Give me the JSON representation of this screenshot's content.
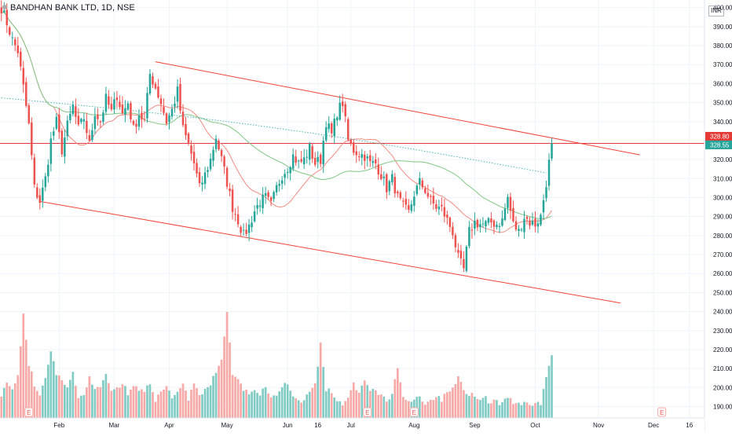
{
  "header": {
    "title": "BANDHAN BANK LTD, 1D, NSE",
    "currency": "INR"
  },
  "colors": {
    "up": "#26a69a",
    "down": "#ef5350",
    "up_volume": "#80cbc4",
    "down_volume": "#f7a9a7",
    "ma_fast": "#f28b82",
    "ma_mid": "#81c784",
    "ma_slow": "#4db6ac",
    "channel": "#f44336",
    "price_line": "#e53935"
  },
  "chart_data": {
    "type": "candlestick",
    "symbol": "BANDHAN BANK LTD",
    "interval": "1D",
    "exchange": "NSE",
    "y_axis": {
      "range": [
        184,
        404
      ],
      "ticks": [
        400,
        390,
        380,
        370,
        360,
        350,
        340,
        330,
        320,
        310,
        300,
        290,
        280,
        270,
        260,
        250,
        240,
        230,
        220,
        210,
        200,
        190
      ],
      "unit": "INR"
    },
    "x_axis": {
      "ticks": [
        {
          "label": "Feb",
          "bar": 21
        },
        {
          "label": "Mar",
          "bar": 41
        },
        {
          "label": "Apr",
          "bar": 61
        },
        {
          "label": "May",
          "bar": 82
        },
        {
          "label": "Jun",
          "bar": 104
        },
        {
          "label": "16",
          "bar": 115
        },
        {
          "label": "Jul",
          "bar": 127
        },
        {
          "label": "Aug",
          "bar": 150
        },
        {
          "label": "Sep",
          "bar": 172
        },
        {
          "label": "Oct",
          "bar": 194
        },
        {
          "label": "Nov",
          "bar": 217
        },
        {
          "label": "Dec",
          "bar": 237
        },
        {
          "label": "16",
          "bar": 250
        }
      ]
    },
    "total_bars": 256,
    "last_bar": 200,
    "current_price": "328.55",
    "reference_price": "328.80",
    "close_anchors": [
      [
        0,
        400
      ],
      [
        2,
        392
      ],
      [
        4,
        383
      ],
      [
        6,
        377
      ],
      [
        8,
        358
      ],
      [
        10,
        338
      ],
      [
        12,
        305
      ],
      [
        14,
        298
      ],
      [
        16,
        310
      ],
      [
        18,
        330
      ],
      [
        20,
        340
      ],
      [
        22,
        325
      ],
      [
        24,
        338
      ],
      [
        26,
        348
      ],
      [
        28,
        336
      ],
      [
        30,
        342
      ],
      [
        32,
        328
      ],
      [
        34,
        345
      ],
      [
        36,
        340
      ],
      [
        38,
        352
      ],
      [
        40,
        345
      ],
      [
        42,
        354
      ],
      [
        44,
        344
      ],
      [
        46,
        350
      ],
      [
        48,
        336
      ],
      [
        50,
        344
      ],
      [
        52,
        340
      ],
      [
        54,
        365
      ],
      [
        56,
        358
      ],
      [
        58,
        350
      ],
      [
        60,
        340
      ],
      [
        62,
        346
      ],
      [
        64,
        356
      ],
      [
        66,
        336
      ],
      [
        68,
        328
      ],
      [
        70,
        318
      ],
      [
        72,
        305
      ],
      [
        74,
        312
      ],
      [
        76,
        320
      ],
      [
        78,
        332
      ],
      [
        80,
        320
      ],
      [
        82,
        308
      ],
      [
        84,
        295
      ],
      [
        86,
        288
      ],
      [
        88,
        280
      ],
      [
        90,
        285
      ],
      [
        92,
        293
      ],
      [
        94,
        298
      ],
      [
        96,
        300
      ],
      [
        98,
        296
      ],
      [
        100,
        305
      ],
      [
        102,
        312
      ],
      [
        104,
        316
      ],
      [
        106,
        322
      ],
      [
        108,
        318
      ],
      [
        110,
        320
      ],
      [
        112,
        326
      ],
      [
        114,
        318
      ],
      [
        116,
        320
      ],
      [
        118,
        340
      ],
      [
        120,
        333
      ],
      [
        122,
        345
      ],
      [
        124,
        350
      ],
      [
        126,
        330
      ],
      [
        128,
        325
      ],
      [
        130,
        323
      ],
      [
        132,
        322
      ],
      [
        134,
        318
      ],
      [
        136,
        318
      ],
      [
        138,
        312
      ],
      [
        140,
        305
      ],
      [
        142,
        310
      ],
      [
        144,
        300
      ],
      [
        146,
        295
      ],
      [
        148,
        292
      ],
      [
        150,
        302
      ],
      [
        152,
        308
      ],
      [
        154,
        304
      ],
      [
        156,
        298
      ],
      [
        158,
        295
      ],
      [
        160,
        294
      ],
      [
        162,
        288
      ],
      [
        164,
        282
      ],
      [
        166,
        268
      ],
      [
        168,
        262
      ],
      [
        170,
        282
      ],
      [
        172,
        287
      ],
      [
        174,
        286
      ],
      [
        176,
        286
      ],
      [
        178,
        287
      ],
      [
        180,
        286
      ],
      [
        182,
        288
      ],
      [
        184,
        300
      ],
      [
        186,
        286
      ],
      [
        188,
        282
      ],
      [
        190,
        290
      ],
      [
        192,
        287
      ],
      [
        194,
        286
      ],
      [
        196,
        290
      ],
      [
        198,
        308
      ],
      [
        200,
        328.55
      ]
    ],
    "volume_anchors": [
      [
        0,
        194
      ],
      [
        2,
        204
      ],
      [
        4,
        200
      ],
      [
        6,
        206
      ],
      [
        8,
        240
      ],
      [
        10,
        212
      ],
      [
        12,
        202
      ],
      [
        14,
        196
      ],
      [
        16,
        205
      ],
      [
        18,
        218
      ],
      [
        20,
        207
      ],
      [
        22,
        203
      ],
      [
        24,
        199
      ],
      [
        26,
        208
      ],
      [
        28,
        195
      ],
      [
        30,
        197
      ],
      [
        32,
        205
      ],
      [
        34,
        199
      ],
      [
        36,
        201
      ],
      [
        38,
        206
      ],
      [
        40,
        197
      ],
      [
        42,
        199
      ],
      [
        44,
        203
      ],
      [
        46,
        196
      ],
      [
        48,
        202
      ],
      [
        50,
        198
      ],
      [
        52,
        199
      ],
      [
        54,
        203
      ],
      [
        56,
        194
      ],
      [
        58,
        197
      ],
      [
        60,
        200
      ],
      [
        62,
        195
      ],
      [
        64,
        197
      ],
      [
        66,
        201
      ],
      [
        68,
        194
      ],
      [
        70,
        203
      ],
      [
        72,
        196
      ],
      [
        74,
        198
      ],
      [
        76,
        202
      ],
      [
        78,
        208
      ],
      [
        80,
        215
      ],
      [
        82,
        240
      ],
      [
        84,
        206
      ],
      [
        86,
        203
      ],
      [
        88,
        199
      ],
      [
        90,
        197
      ],
      [
        92,
        198
      ],
      [
        94,
        196
      ],
      [
        96,
        200
      ],
      [
        98,
        194
      ],
      [
        100,
        197
      ],
      [
        102,
        199
      ],
      [
        104,
        203
      ],
      [
        106,
        196
      ],
      [
        108,
        192
      ],
      [
        110,
        194
      ],
      [
        112,
        197
      ],
      [
        114,
        201
      ],
      [
        116,
        223
      ],
      [
        118,
        199
      ],
      [
        120,
        197
      ],
      [
        122,
        193
      ],
      [
        124,
        190
      ],
      [
        126,
        196
      ],
      [
        128,
        202
      ],
      [
        130,
        197
      ],
      [
        132,
        203
      ],
      [
        134,
        197
      ],
      [
        136,
        200
      ],
      [
        138,
        195
      ],
      [
        140,
        193
      ],
      [
        142,
        197
      ],
      [
        144,
        210
      ],
      [
        146,
        196
      ],
      [
        148,
        193
      ],
      [
        150,
        195
      ],
      [
        152,
        194
      ],
      [
        154,
        192
      ],
      [
        156,
        193
      ],
      [
        158,
        196
      ],
      [
        160,
        194
      ],
      [
        162,
        198
      ],
      [
        164,
        201
      ],
      [
        166,
        205
      ],
      [
        168,
        199
      ],
      [
        170,
        197
      ],
      [
        172,
        195
      ],
      [
        174,
        193
      ],
      [
        176,
        194
      ],
      [
        178,
        192
      ],
      [
        180,
        193
      ],
      [
        182,
        191
      ],
      [
        184,
        195
      ],
      [
        186,
        192
      ],
      [
        188,
        191
      ],
      [
        190,
        192
      ],
      [
        192,
        190
      ],
      [
        194,
        193
      ],
      [
        196,
        191
      ],
      [
        198,
        205
      ],
      [
        200,
        217
      ]
    ],
    "moving_averages": [
      {
        "color_key": "ma_fast",
        "period": 20,
        "style": "solid"
      },
      {
        "color_key": "ma_mid",
        "period": 50,
        "style": "solid"
      },
      {
        "color_key": "ma_slow",
        "period": 200,
        "style": "dotted",
        "start": [
          0,
          352.5
        ],
        "end": [
          198,
          313
        ]
      }
    ],
    "trendlines": [
      {
        "from": [
          56,
          371.5
        ],
        "to": [
          232,
          322.5
        ]
      },
      {
        "from": [
          14,
          298
        ],
        "to": [
          225,
          244.5
        ]
      }
    ],
    "event_markers": [
      {
        "label": "E",
        "bar": 10
      },
      {
        "label": "E",
        "bar": 133
      },
      {
        "label": "E",
        "bar": 150
      },
      {
        "label": "E",
        "bar": 240
      }
    ],
    "grid": true
  }
}
